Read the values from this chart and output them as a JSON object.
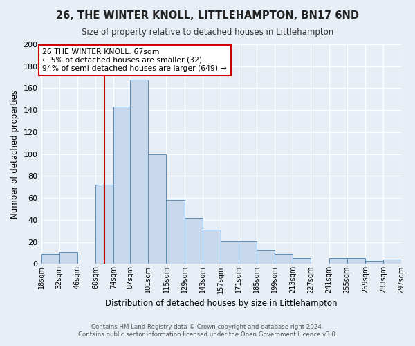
{
  "title": "26, THE WINTER KNOLL, LITTLEHAMPTON, BN17 6ND",
  "subtitle": "Size of property relative to detached houses in Littlehampton",
  "xlabel": "Distribution of detached houses by size in Littlehampton",
  "ylabel": "Number of detached properties",
  "footnote1": "Contains HM Land Registry data © Crown copyright and database right 2024.",
  "footnote2": "Contains public sector information licensed under the Open Government Licence v3.0.",
  "bin_edges": [
    18,
    32,
    46,
    60,
    74,
    87,
    101,
    115,
    129,
    143,
    157,
    171,
    185,
    199,
    213,
    227,
    241,
    255,
    269,
    283,
    297
  ],
  "bar_heights": [
    9,
    11,
    0,
    72,
    143,
    168,
    100,
    58,
    42,
    31,
    21,
    21,
    13,
    9,
    5,
    0,
    5,
    5,
    3,
    4
  ],
  "bar_color": "#c9d9ed",
  "bar_edge_color": "#5b8db8",
  "property_line_x": 67,
  "property_line_color": "#cc0000",
  "ylim": [
    0,
    200
  ],
  "yticks": [
    0,
    20,
    40,
    60,
    80,
    100,
    120,
    140,
    160,
    180,
    200
  ],
  "annotation_text": "26 THE WINTER KNOLL: 67sqm\n← 5% of detached houses are smaller (32)\n94% of semi-detached houses are larger (649) →",
  "annotation_box_color": "#ffffff",
  "annotation_box_edge": "#cc0000",
  "bg_color": "#e8eef6",
  "plot_bg_color": "#e8eef6",
  "grid_color": "#ffffff",
  "tick_labels": [
    "18sqm",
    "32sqm",
    "46sqm",
    "60sqm",
    "74sqm",
    "87sqm",
    "101sqm",
    "115sqm",
    "129sqm",
    "143sqm",
    "157sqm",
    "171sqm",
    "185sqm",
    "199sqm",
    "213sqm",
    "227sqm",
    "241sqm",
    "255sqm",
    "269sqm",
    "283sqm",
    "297sqm"
  ]
}
